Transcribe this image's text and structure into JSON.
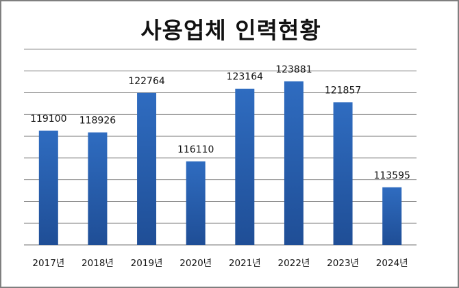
{
  "chart_data": {
    "type": "bar",
    "title": "사용업체 인력현황",
    "xlabel": "",
    "ylabel": "",
    "categories": [
      "2017년",
      "2018년",
      "2019년",
      "2020년",
      "2021년",
      "2022년",
      "2023년",
      "2024년"
    ],
    "values": [
      119100,
      118926,
      122764,
      116110,
      123164,
      123881,
      121857,
      113595
    ],
    "ylim": [
      108000,
      127000
    ],
    "grid": true,
    "y_tick_labels_shown": false,
    "bar_color": "#1f4e96",
    "bar_color_light": "#2f6cc0",
    "grid_color": "#8c8c8c"
  }
}
